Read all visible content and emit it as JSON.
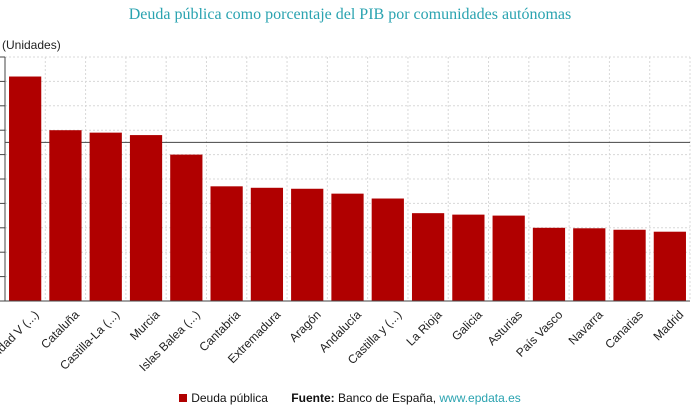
{
  "chart_data": {
    "type": "bar",
    "title": "Deuda pública como porcentaje del PIB por comunidades autónomas",
    "ylabel": "(Unidades)",
    "ylim": [
      0,
      50
    ],
    "grid": true,
    "reference_line": 32.5,
    "categories": [
      "Comunidad V (...)",
      "Cataluña",
      "Castilla-La (...)",
      "Murcia",
      "Islas Balea (...)",
      "Cantabria",
      "Extremadura",
      "Aragón",
      "Andalucía",
      "Castilla y (...)",
      "La Rioja",
      "Galicia",
      "Asturias",
      "País Vasco",
      "Navarra",
      "Canarias",
      "Madrid"
    ],
    "series": [
      {
        "name": "Deuda pública",
        "color": "#b00000",
        "values": [
          46,
          35,
          34.5,
          34,
          30,
          23.5,
          23.2,
          23,
          22,
          21,
          18,
          17.7,
          17.5,
          15,
          14.9,
          14.6,
          14.2
        ]
      }
    ],
    "legend_position": "bottom"
  },
  "footer": {
    "legend_label": "Deuda pública",
    "source_label": "Fuente:",
    "source_text": "Banco de España,",
    "source_link": "www.epdata.es"
  }
}
